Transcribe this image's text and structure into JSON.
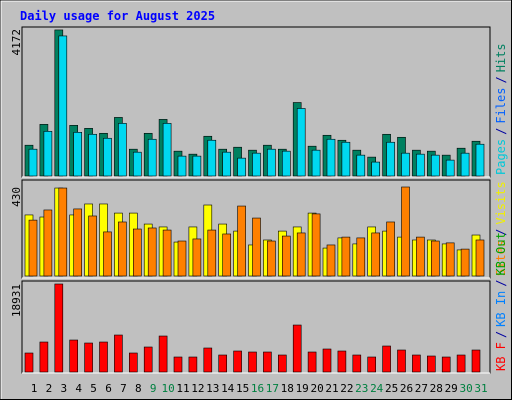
{
  "chart_data": [
    {
      "type": "bar",
      "title": "Daily usage for August 2025",
      "ylim": [
        0,
        4172
      ],
      "yticks": [
        4172
      ],
      "legend": [
        {
          "name": "Pages",
          "color": "#00c8d8"
        },
        {
          "name": "Files",
          "color": "#0060ff"
        },
        {
          "name": "Hits",
          "color": "#008060"
        }
      ],
      "legend_separator": "/",
      "series": [
        {
          "color": "#008060",
          "values": [
            874,
            1466,
            4145,
            1438,
            1353,
            1212,
            1663,
            761,
            1212,
            1607,
            705,
            620,
            1128,
            761,
            817,
            733,
            874,
            761,
            2086,
            846,
            1156,
            1015,
            733,
            536,
            1184,
            1099,
            733,
            705,
            592,
            789,
            987
          ]
        },
        {
          "color": "#00d8f0",
          "values": [
            761,
            1268,
            3975,
            1240,
            1184,
            1071,
            1494,
            676,
            1043,
            1494,
            564,
            564,
            1015,
            676,
            507,
            648,
            761,
            705,
            1917,
            733,
            1043,
            958,
            592,
            395,
            958,
            648,
            620,
            592,
            451,
            648,
            902
          ]
        }
      ]
    },
    {
      "type": "bar",
      "ylim": [
        0,
        430
      ],
      "yticks": [
        430
      ],
      "legend": [
        {
          "name": "Sites",
          "color": "#ff8000"
        },
        {
          "name": "Visits",
          "color": "#f0f000"
        }
      ],
      "legend_separator": "/",
      "series": [
        {
          "color": "#ffff00",
          "values": [
            295,
            285,
            425,
            295,
            348,
            348,
            304,
            304,
            251,
            237,
            164,
            237,
            343,
            251,
            217,
            150,
            174,
            217,
            237,
            304,
            135,
            184,
            155,
            237,
            217,
            188,
            174,
            174,
            155,
            126,
            198
          ]
        },
        {
          "color": "#ff8000",
          "values": [
            270,
            319,
            425,
            324,
            290,
            213,
            261,
            227,
            232,
            222,
            169,
            179,
            222,
            203,
            338,
            280,
            169,
            193,
            208,
            300,
            150,
            188,
            184,
            208,
            261,
            430,
            188,
            169,
            160,
            130,
            174
          ]
        }
      ]
    },
    {
      "type": "bar",
      "ylim": [
        0,
        18931
      ],
      "yticks": [
        18931
      ],
      "legend": [
        {
          "name": "KB F",
          "color": "#ff0000"
        },
        {
          "name": "KB In",
          "color": "#0080ff"
        },
        {
          "name": "KB Out",
          "color": "#00a000"
        }
      ],
      "legend_separator": "/",
      "categories": [
        "1",
        "2",
        "3",
        "4",
        "5",
        "6",
        "7",
        "8",
        "9",
        "10",
        "11",
        "12",
        "13",
        "14",
        "15",
        "16",
        "17",
        "18",
        "19",
        "20",
        "21",
        "22",
        "23",
        "24",
        "25",
        "26",
        "27",
        "28",
        "29",
        "30",
        "31"
      ],
      "category_colors": [
        "#000000",
        "#000000",
        "#000000",
        "#000000",
        "#000000",
        "#000000",
        "#000000",
        "#000000",
        "#008040",
        "#008040",
        "#000000",
        "#000000",
        "#000000",
        "#000000",
        "#000000",
        "#008040",
        "#008040",
        "#000000",
        "#000000",
        "#000000",
        "#000000",
        "#000000",
        "#008040",
        "#008040",
        "#000000",
        "#000000",
        "#000000",
        "#000000",
        "#000000",
        "#008040",
        "#008040"
      ],
      "series": [
        {
          "color": "#ff0000",
          "values": [
            4085,
            6450,
            18931,
            6880,
            6235,
            6450,
            7955,
            4085,
            5375,
            7740,
            3225,
            3225,
            5160,
            3655,
            4515,
            4300,
            4300,
            3655,
            10105,
            4300,
            4945,
            4515,
            3655,
            3225,
            5590,
            4730,
            3655,
            3440,
            3225,
            3655,
            4730
          ]
        }
      ]
    }
  ]
}
